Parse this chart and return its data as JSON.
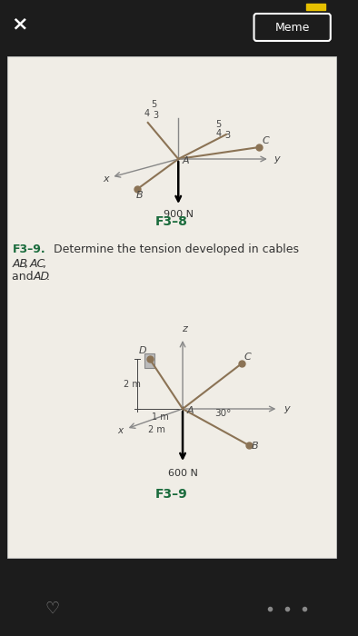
{
  "bg_outer": "#1c1c1c",
  "bg_paper": "#f0ede6",
  "meme_button": "Meme",
  "title1": "F3–8",
  "title2": "F3–9",
  "fig1_force": "900 N",
  "fig2_force": "600 N",
  "fig2_angle": "30°",
  "fig2_dim1": "2 m",
  "fig2_dim2": "1 m",
  "fig2_dim3": "2 m",
  "cable_color": "#8B7355",
  "axis_color": "#888888",
  "text_color": "#333333",
  "label_color": "#444444",
  "green_color": "#1a6b3c",
  "yellow_color": "#e6c000"
}
